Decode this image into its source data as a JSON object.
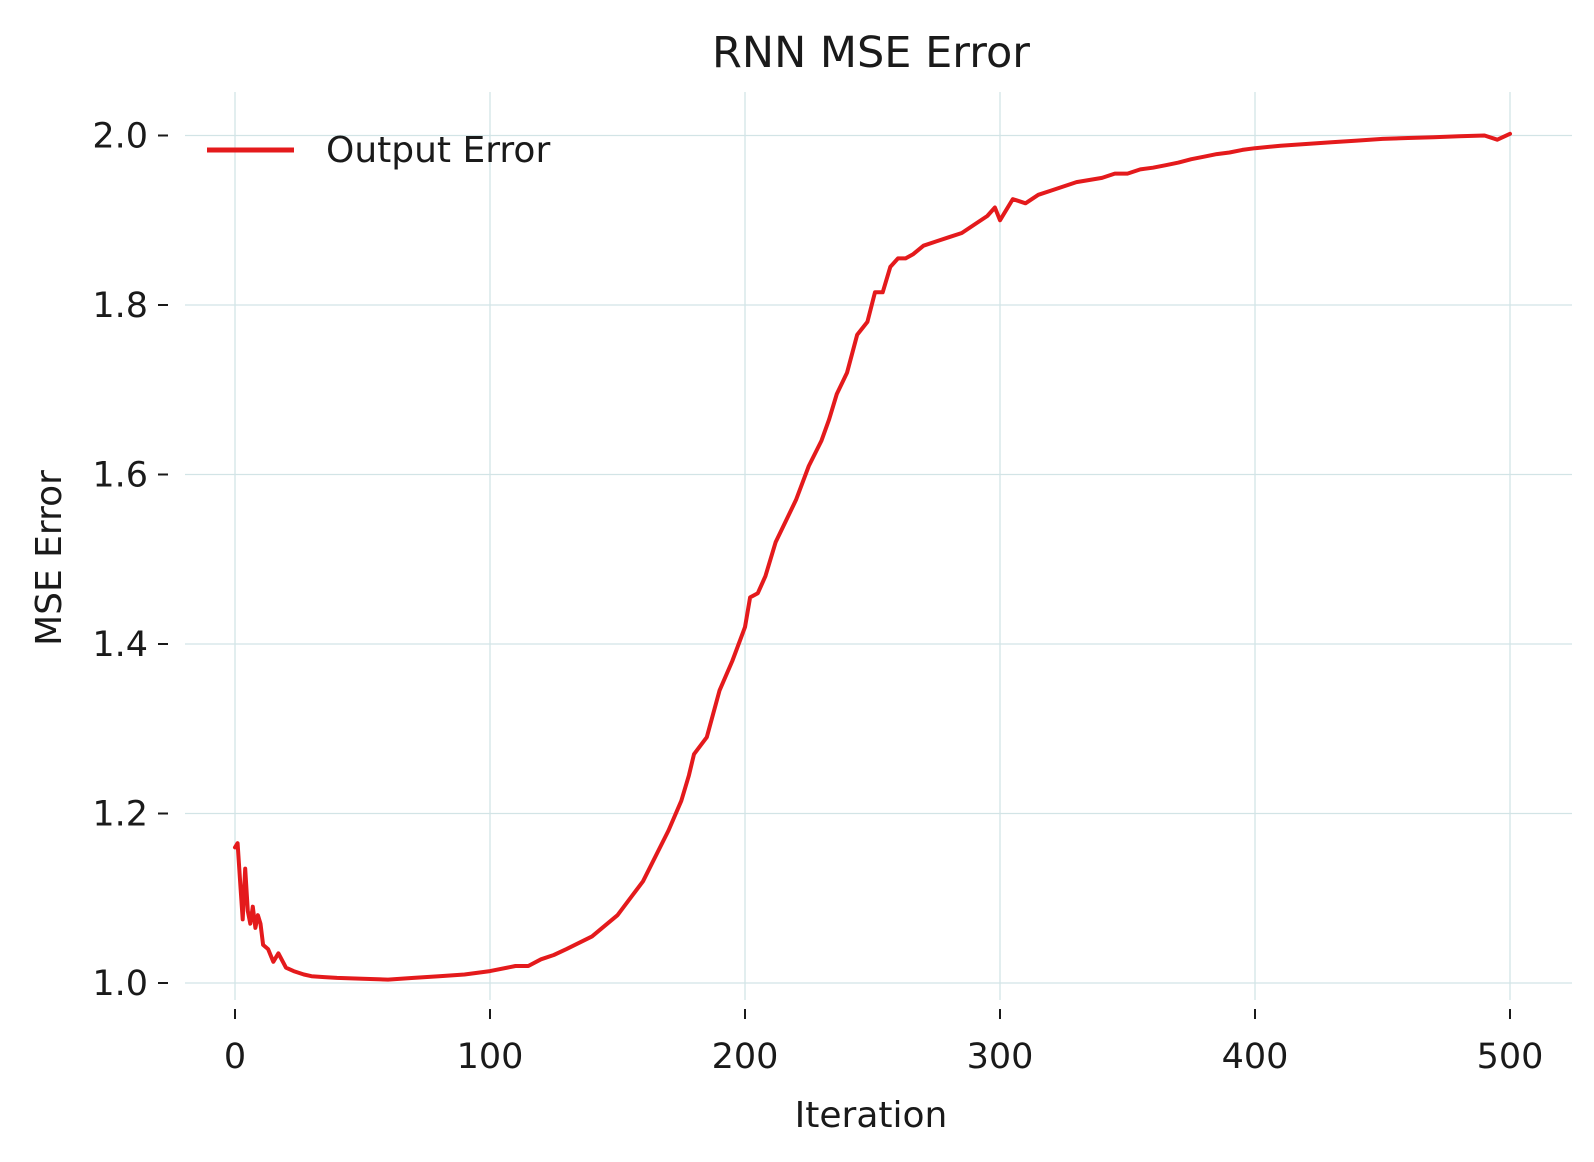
{
  "chart_data": {
    "type": "line",
    "title": "RNN MSE Error",
    "xlabel": "Iteration",
    "ylabel": "MSE Error",
    "xlim": [
      -20,
      523
    ],
    "ylim": [
      0.98,
      2.05
    ],
    "xticks": [
      0,
      100,
      200,
      300,
      400,
      500
    ],
    "xtick_labels": [
      "0",
      "100",
      "200",
      "300",
      "400",
      "500"
    ],
    "yticks": [
      1.0,
      1.2,
      1.4,
      1.6,
      1.8,
      2.0
    ],
    "ytick_labels": [
      "1.0",
      "1.2",
      "1.4",
      "1.6",
      "1.8",
      "2.0"
    ],
    "grid": true,
    "legend_position": "top-left",
    "series": [
      {
        "name": "Output Error",
        "color": "#e41a1c",
        "x": [
          0,
          1,
          2,
          3,
          4,
          5,
          6,
          7,
          8,
          9,
          10,
          11,
          13,
          15,
          17,
          20,
          23,
          27,
          30,
          35,
          40,
          50,
          60,
          70,
          80,
          90,
          100,
          110,
          115,
          120,
          125,
          130,
          140,
          150,
          160,
          170,
          175,
          178,
          180,
          185,
          190,
          195,
          200,
          202,
          205,
          208,
          212,
          216,
          220,
          225,
          230,
          233,
          236,
          240,
          244,
          248,
          251,
          254,
          257,
          260,
          263,
          266,
          270,
          275,
          280,
          285,
          290,
          295,
          298,
          300,
          305,
          310,
          315,
          320,
          330,
          340,
          345,
          350,
          355,
          360,
          365,
          370,
          375,
          380,
          385,
          390,
          395,
          400,
          410,
          420,
          430,
          440,
          450,
          460,
          470,
          480,
          490,
          495,
          500
        ],
        "values": [
          1.16,
          1.165,
          1.12,
          1.075,
          1.135,
          1.085,
          1.07,
          1.09,
          1.065,
          1.08,
          1.07,
          1.045,
          1.04,
          1.025,
          1.035,
          1.018,
          1.014,
          1.01,
          1.008,
          1.007,
          1.006,
          1.005,
          1.004,
          1.006,
          1.008,
          1.01,
          1.014,
          1.02,
          1.02,
          1.028,
          1.033,
          1.04,
          1.055,
          1.08,
          1.12,
          1.18,
          1.215,
          1.245,
          1.27,
          1.29,
          1.345,
          1.38,
          1.42,
          1.455,
          1.46,
          1.48,
          1.52,
          1.545,
          1.57,
          1.61,
          1.64,
          1.665,
          1.695,
          1.72,
          1.765,
          1.78,
          1.815,
          1.815,
          1.845,
          1.855,
          1.855,
          1.86,
          1.87,
          1.875,
          1.88,
          1.885,
          1.895,
          1.905,
          1.915,
          1.9,
          1.925,
          1.92,
          1.93,
          1.935,
          1.945,
          1.95,
          1.955,
          1.955,
          1.96,
          1.962,
          1.965,
          1.968,
          1.972,
          1.975,
          1.978,
          1.98,
          1.983,
          1.985,
          1.988,
          1.99,
          1.992,
          1.994,
          1.996,
          1.997,
          1.998,
          1.999,
          2.0,
          1.995,
          2.002
        ]
      }
    ]
  }
}
